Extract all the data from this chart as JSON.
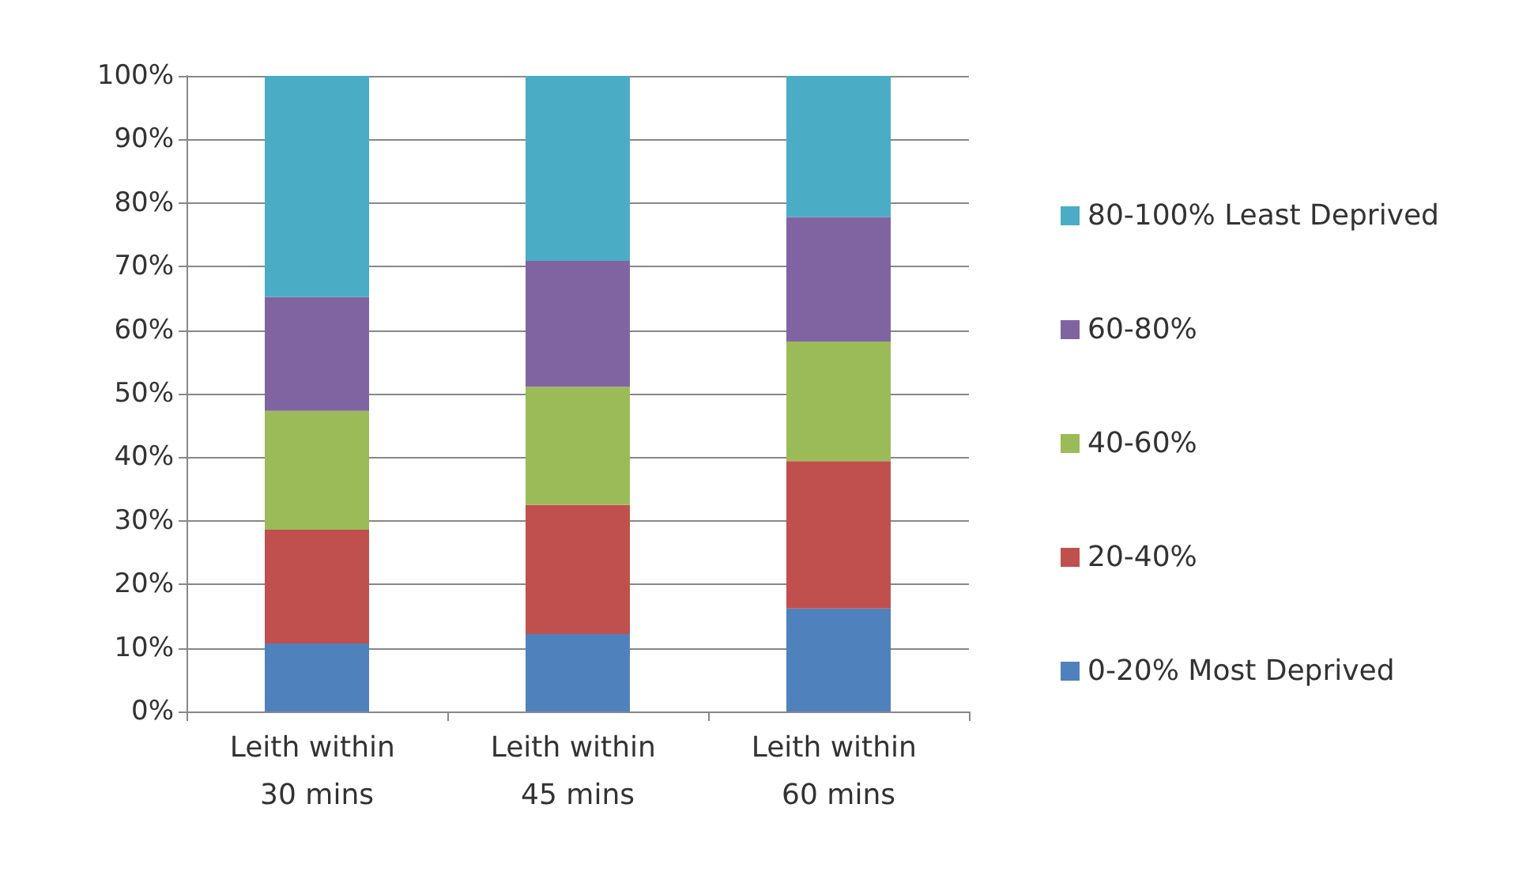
{
  "chart_data": {
    "type": "bar",
    "stacked": true,
    "categories": [
      "Leith within 30 mins",
      "Leith within 45 mins",
      "Leith within 60 mins"
    ],
    "series": [
      {
        "name": "0-20% Most Deprived",
        "color": "#4f81bd",
        "values": [
          10.7,
          12.2,
          16.2
        ]
      },
      {
        "name": "20-40%",
        "color": "#c0504d",
        "values": [
          17.9,
          20.3,
          23.2
        ]
      },
      {
        "name": "40-60%",
        "color": "#9bbb59",
        "values": [
          18.7,
          18.6,
          18.8
        ]
      },
      {
        "name": "60-80%",
        "color": "#8064a2",
        "values": [
          17.9,
          19.8,
          19.6
        ]
      },
      {
        "name": "80-100% Least Deprived",
        "color": "#4bacc6",
        "values": [
          34.8,
          29.1,
          22.2
        ]
      }
    ],
    "ylim": [
      0,
      100
    ],
    "yticks": [
      {
        "value": 0,
        "label": "0%"
      },
      {
        "value": 10,
        "label": "10%"
      },
      {
        "value": 20,
        "label": "20%"
      },
      {
        "value": 30,
        "label": "30%"
      },
      {
        "value": 40,
        "label": "40%"
      },
      {
        "value": 50,
        "label": "50%"
      },
      {
        "value": 60,
        "label": "60%"
      },
      {
        "value": 70,
        "label": "70%"
      },
      {
        "value": 80,
        "label": "80%"
      },
      {
        "value": 90,
        "label": "90%"
      },
      {
        "value": 100,
        "label": "100%"
      }
    ],
    "grid": "y",
    "legend": "right"
  }
}
